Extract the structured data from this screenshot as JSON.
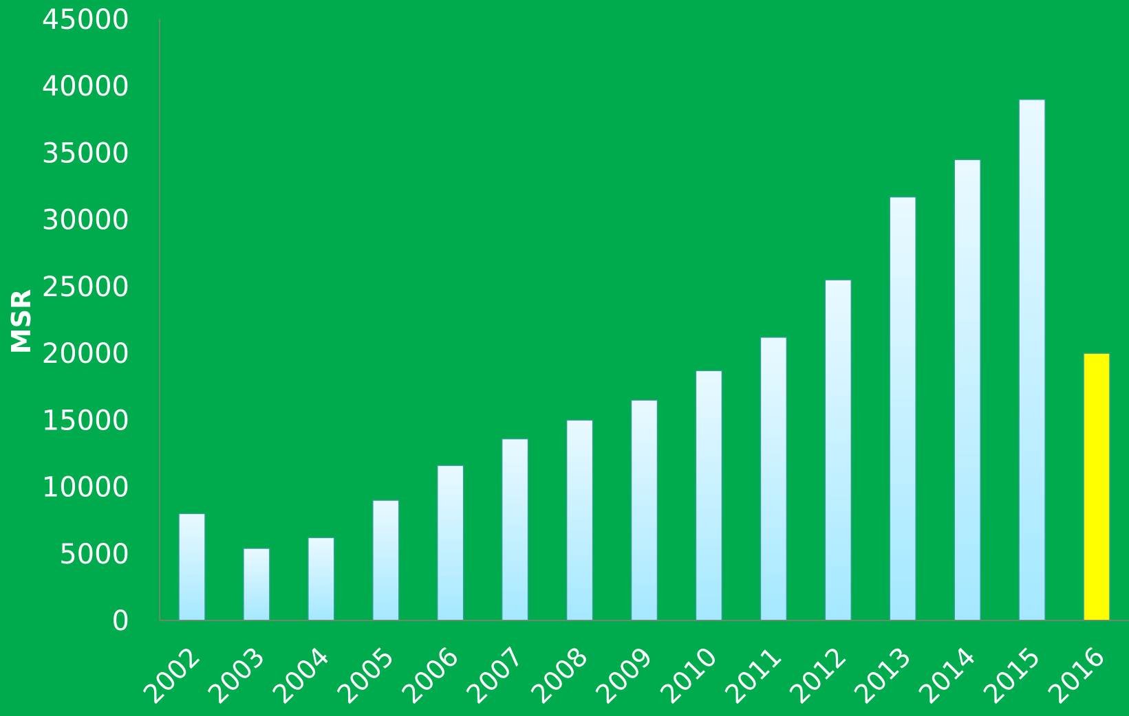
{
  "chart_data": {
    "type": "bar",
    "title": "",
    "xlabel": "",
    "ylabel": "MSR",
    "categories": [
      "2002",
      "2003",
      "2004",
      "2005",
      "2006",
      "2007",
      "2008",
      "2009",
      "2010",
      "2011",
      "2012",
      "2013",
      "2014",
      "2015",
      "2016"
    ],
    "series": [
      {
        "values": [
          8000,
          5400,
          6200,
          9000,
          11600,
          13600,
          15000,
          16500,
          18700,
          21200,
          25500,
          31700,
          34500,
          39000,
          20000
        ]
      }
    ],
    "highlight_index": 14,
    "ylim": [
      0,
      45000
    ],
    "yticks": [
      0,
      5000,
      10000,
      15000,
      20000,
      25000,
      30000,
      35000,
      40000,
      45000
    ],
    "ytick_labels": [
      "0",
      "5000",
      "10000",
      "15000",
      "20000",
      "25000",
      "30000",
      "35000",
      "40000",
      "45000"
    ],
    "grid": false,
    "legend": "none",
    "colors": {
      "background": "#00ab4e",
      "bar_top": "#eaf9ff",
      "bar_bottom": "#a4e8ff",
      "bar_border": "#2f9d8f",
      "highlight": "#ffff00",
      "axis": "#6a8c6a",
      "text": "#ffffff"
    }
  }
}
